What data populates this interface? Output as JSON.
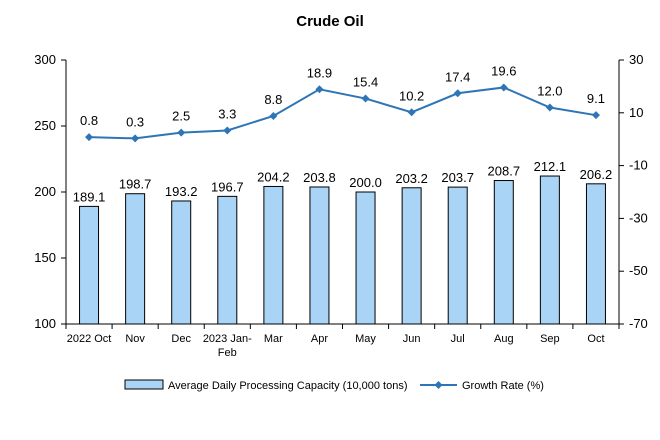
{
  "chart_data": {
    "type": "bar",
    "title": "Crude Oil",
    "categories": [
      "2022 Oct",
      "Nov",
      "Dec",
      "2023 Jan-Feb",
      "Mar",
      "Apr",
      "May",
      "Jun",
      "Jul",
      "Aug",
      "Sep",
      "Oct"
    ],
    "category_lines": [
      [
        "2022 Oct"
      ],
      [
        "Nov"
      ],
      [
        "Dec"
      ],
      [
        "2023 Jan-",
        "Feb"
      ],
      [
        "Mar"
      ],
      [
        "Apr"
      ],
      [
        "May"
      ],
      [
        "Jun"
      ],
      [
        "Jul"
      ],
      [
        "Aug"
      ],
      [
        "Sep"
      ],
      [
        "Oct"
      ]
    ],
    "series": [
      {
        "name": "Average Daily Processing Capacity (10,000 tons)",
        "type": "bar",
        "axis": "left",
        "color": "#a9d4f5",
        "values": [
          189.1,
          198.7,
          193.2,
          196.7,
          204.2,
          203.8,
          200.0,
          203.2,
          203.7,
          208.7,
          212.1,
          206.2
        ],
        "labels": [
          "189.1",
          "198.7",
          "193.2",
          "196.7",
          "204.2",
          "203.8",
          "200.0",
          "203.2",
          "203.7",
          "208.7",
          "212.1",
          "206.2"
        ]
      },
      {
        "name": "Growth Rate (%)",
        "type": "line",
        "axis": "right",
        "color": "#2e75b6",
        "values": [
          0.8,
          0.3,
          2.5,
          3.3,
          8.8,
          18.9,
          15.4,
          10.2,
          17.4,
          19.6,
          12.0,
          9.1
        ],
        "labels": [
          "0.8",
          "0.3",
          "2.5",
          "3.3",
          "8.8",
          "18.9",
          "15.4",
          "10.2",
          "17.4",
          "19.6",
          "12.0",
          "9.1"
        ]
      }
    ],
    "left_axis": {
      "min": 100,
      "max": 300,
      "ticks": [
        100,
        150,
        200,
        250,
        300
      ]
    },
    "right_axis": {
      "min": -70,
      "max": 30,
      "ticks": [
        -70,
        -50,
        -30,
        -10,
        10,
        30
      ]
    },
    "grid": false,
    "legend_position": "bottom"
  }
}
